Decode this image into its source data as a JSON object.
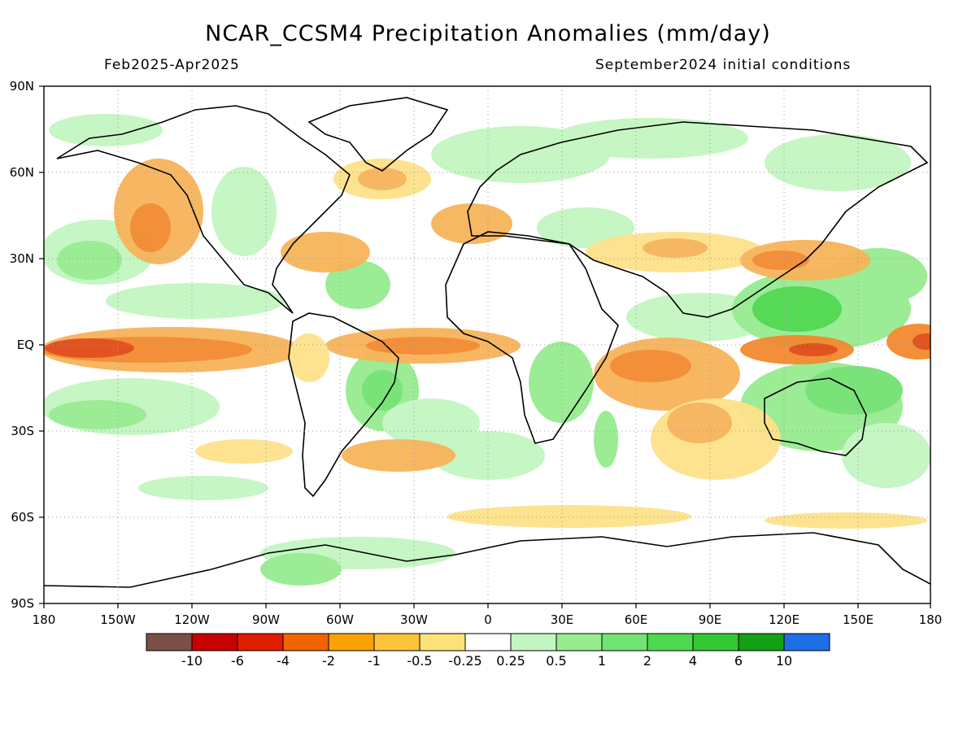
{
  "header": {
    "title": "NCAR_CCSM4 Precipitation Anomalies (mm/day)",
    "period": "Feb2025-Apr2025",
    "init": "September2024 initial conditions"
  },
  "axes": {
    "lat_labels": [
      "90N",
      "60N",
      "30N",
      "EQ",
      "30S",
      "60S",
      "90S"
    ],
    "lon_labels": [
      "180",
      "150W",
      "120W",
      "90W",
      "60W",
      "30W",
      "0",
      "30E",
      "60E",
      "90E",
      "120E",
      "150E",
      "180"
    ]
  },
  "colorbar": {
    "colors": [
      "#7b4f45",
      "#c80000",
      "#e11d00",
      "#f06400",
      "#f9a200",
      "#fbc43c",
      "#fde27a",
      "#ffffff",
      "#c2f6c0",
      "#96ec8f",
      "#72e272",
      "#4ed84e",
      "#34c834",
      "#14a014",
      "#1e6ee6"
    ],
    "labels": [
      "-10",
      "-6",
      "-4",
      "-2",
      "-1",
      "-0.5",
      "-0.25",
      "0.25",
      "0.5",
      "1",
      "2",
      "4",
      "6",
      "10"
    ]
  },
  "map_palette": {
    "dry_strong": "#e14a16",
    "dry": "#f38a2e",
    "dry_light": "#f7b45a",
    "dry_faint": "#fde28a",
    "wet_faint": "#c2f6c0",
    "wet": "#96ec8f",
    "wet_strong": "#4ed84e"
  }
}
